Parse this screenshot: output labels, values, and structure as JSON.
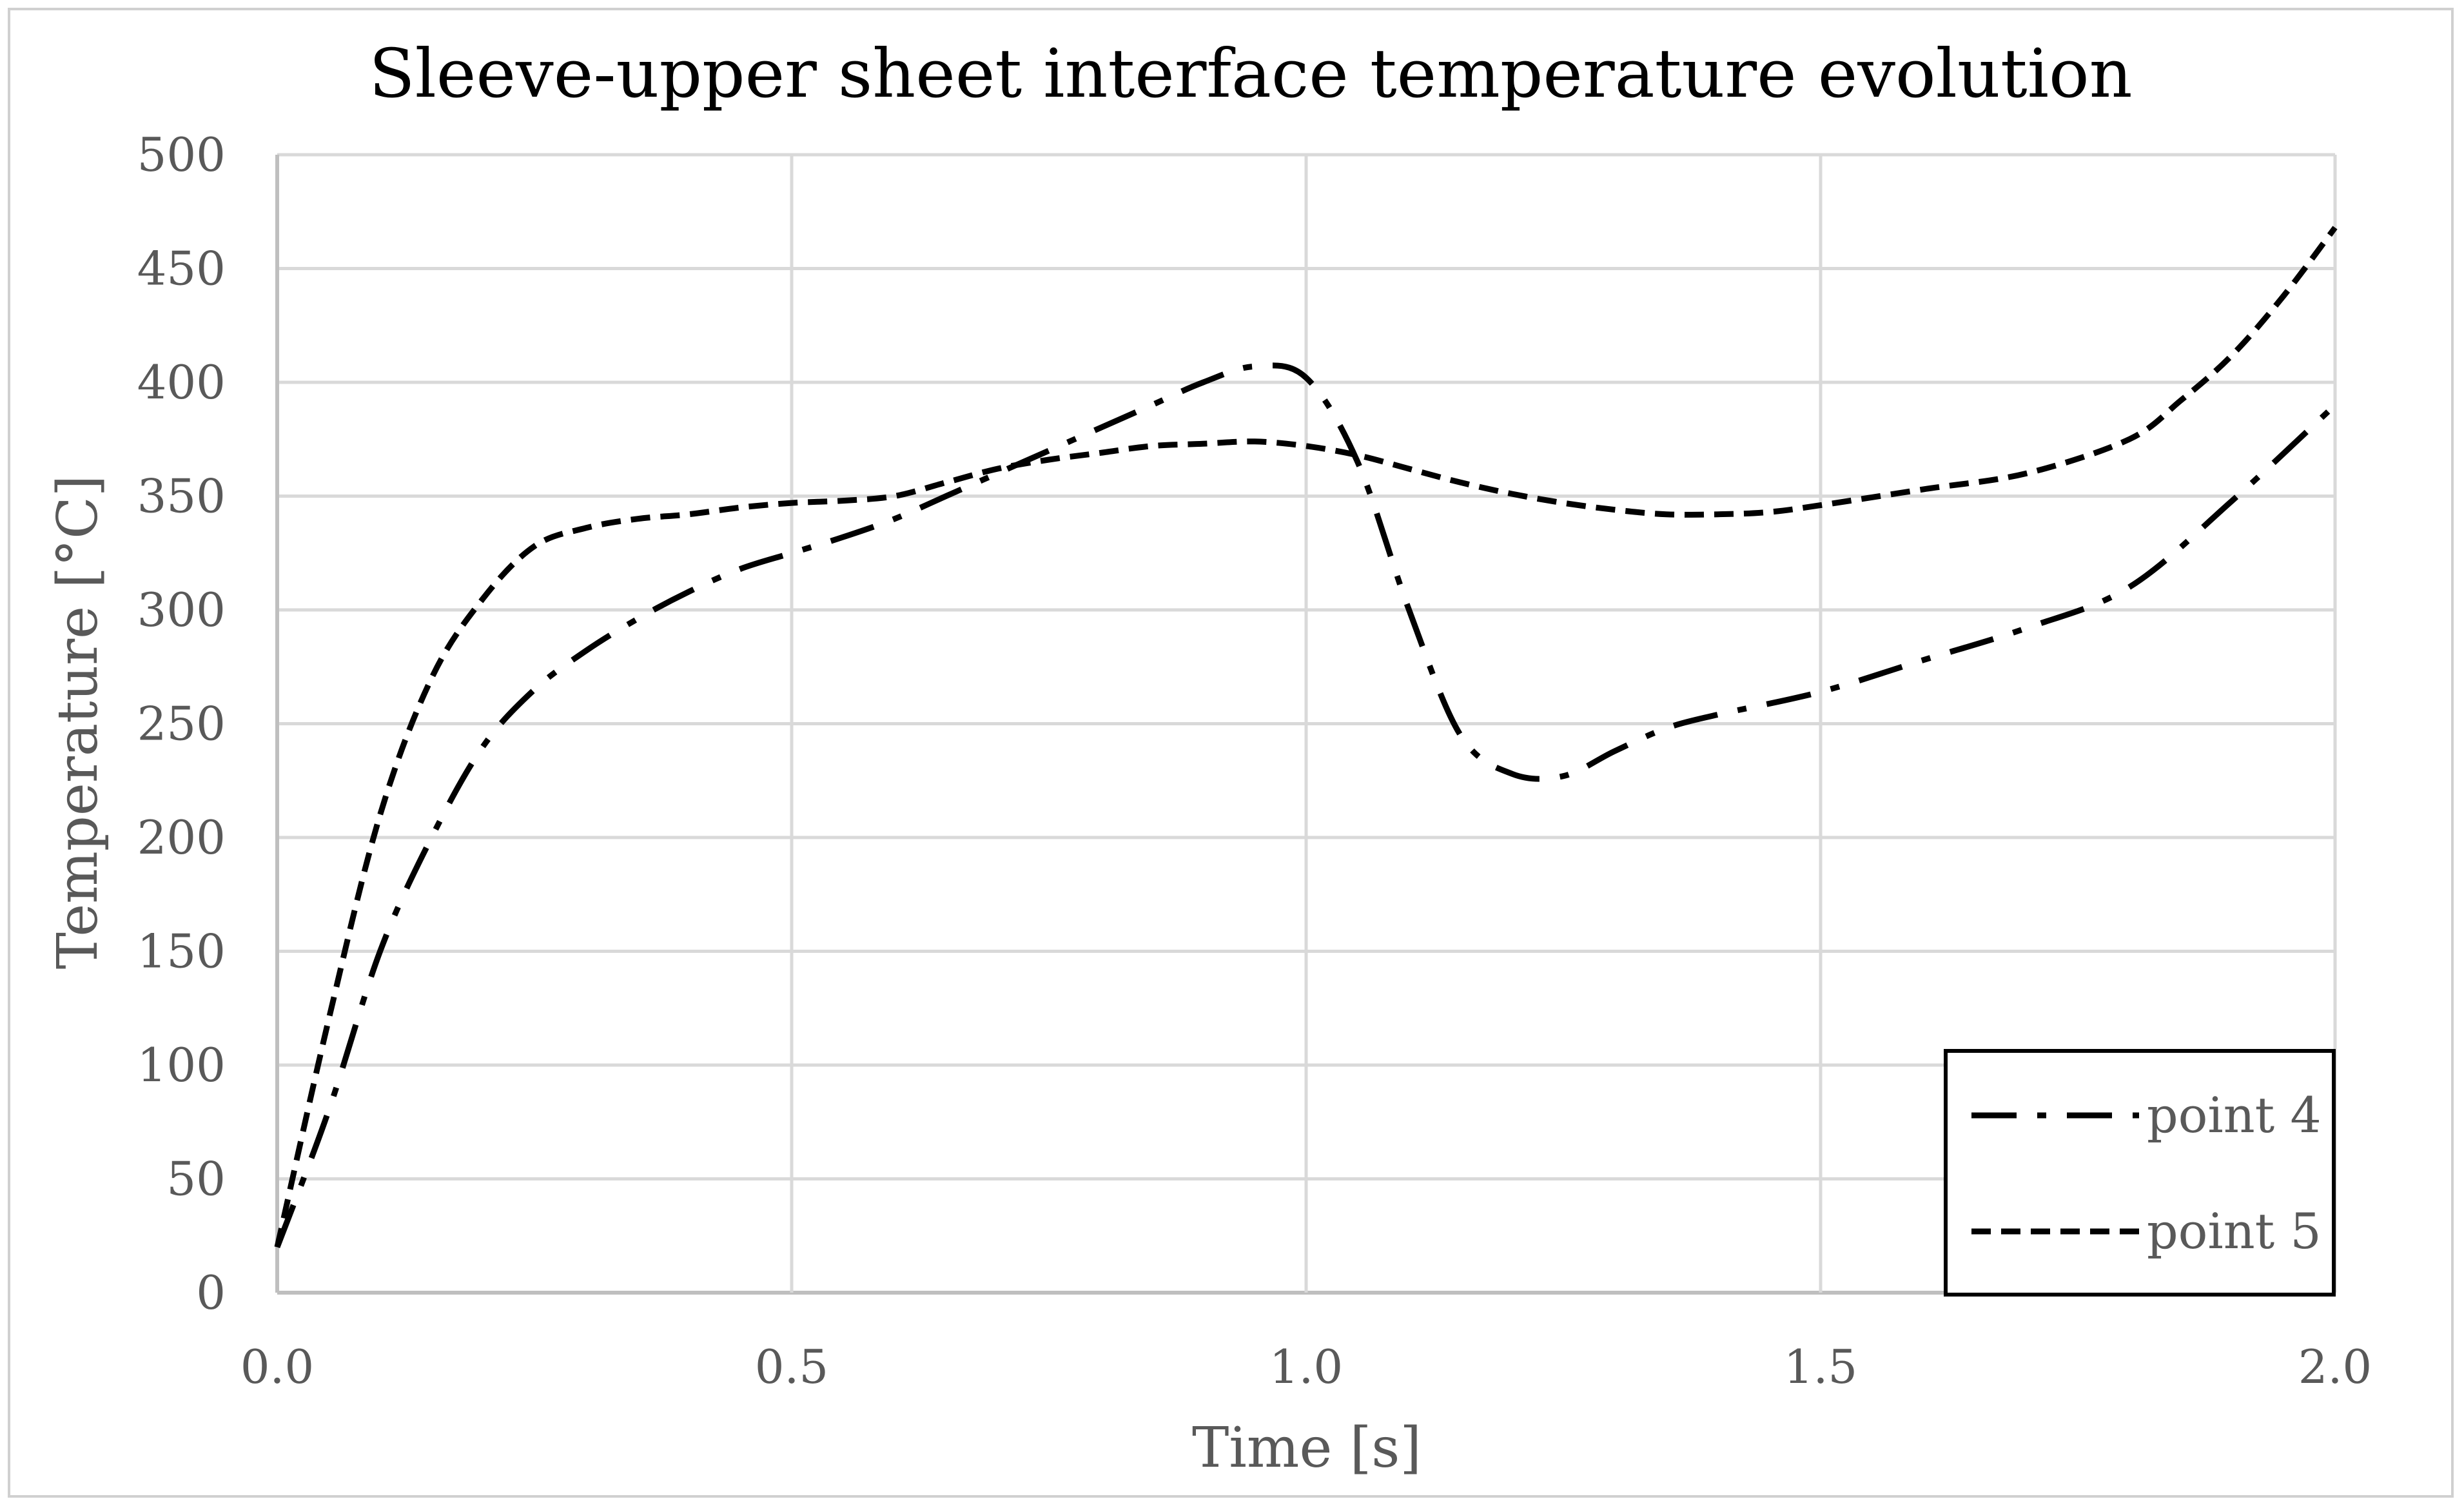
{
  "chart_data": {
    "type": "line",
    "title": "Sleeve-upper sheet interface temperature evolution",
    "xlabel": "Time [s]",
    "ylabel": "Temperature [°C]",
    "xlim": [
      0,
      2
    ],
    "ylim": [
      0,
      500
    ],
    "xticks": [
      "0.0",
      "0.5",
      "1.0",
      "1.5",
      "2.0"
    ],
    "xtick_values": [
      0,
      0.5,
      1,
      1.5,
      2
    ],
    "yticks": [
      "0",
      "50",
      "100",
      "150",
      "200",
      "250",
      "300",
      "350",
      "400",
      "450",
      "500"
    ],
    "ytick_values": [
      0,
      50,
      100,
      150,
      200,
      250,
      300,
      350,
      400,
      450,
      500
    ],
    "grid": true,
    "legend_position": "bottom-right",
    "series": [
      {
        "name": "point 4",
        "style": "dash-dot",
        "color": "#000000",
        "x": [
          0,
          0.05,
          0.1,
          0.15,
          0.2,
          0.25,
          0.3,
          0.35,
          0.4,
          0.45,
          0.5,
          0.55,
          0.6,
          0.65,
          0.7,
          0.75,
          0.8,
          0.85,
          0.9,
          0.95,
          1.0,
          1.05,
          1.1,
          1.15,
          1.2,
          1.25,
          1.3,
          1.35,
          1.4,
          1.5,
          1.6,
          1.7,
          1.8,
          1.9,
          2.0
        ],
        "y": [
          20,
          80,
          150,
          200,
          240,
          265,
          282,
          296,
          308,
          318,
          325,
          332,
          340,
          350,
          360,
          370,
          380,
          390,
          400,
          407,
          402,
          365,
          300,
          245,
          228,
          227,
          238,
          248,
          254,
          264,
          278,
          292,
          310,
          348,
          390
        ]
      },
      {
        "name": "point 5",
        "style": "dashed",
        "color": "#000000",
        "x": [
          0,
          0.05,
          0.1,
          0.15,
          0.2,
          0.25,
          0.3,
          0.35,
          0.4,
          0.45,
          0.5,
          0.55,
          0.6,
          0.65,
          0.7,
          0.75,
          0.8,
          0.85,
          0.9,
          0.95,
          1.0,
          1.05,
          1.1,
          1.15,
          1.2,
          1.25,
          1.3,
          1.35,
          1.4,
          1.45,
          1.5,
          1.6,
          1.7,
          1.8,
          1.85,
          1.9,
          1.95,
          2.0
        ],
        "y": [
          20,
          120,
          210,
          270,
          305,
          328,
          336,
          340,
          342,
          345,
          347,
          348,
          350,
          356,
          362,
          366,
          369,
          372,
          373,
          374,
          372,
          368,
          362,
          356,
          351,
          347,
          344,
          342,
          342,
          343,
          346,
          353,
          360,
          375,
          392,
          412,
          438,
          468
        ]
      }
    ]
  },
  "colors": {
    "grid": "#d9d9d9",
    "axis": "#bfbfbf",
    "text": "#595959",
    "line": "#000000"
  }
}
